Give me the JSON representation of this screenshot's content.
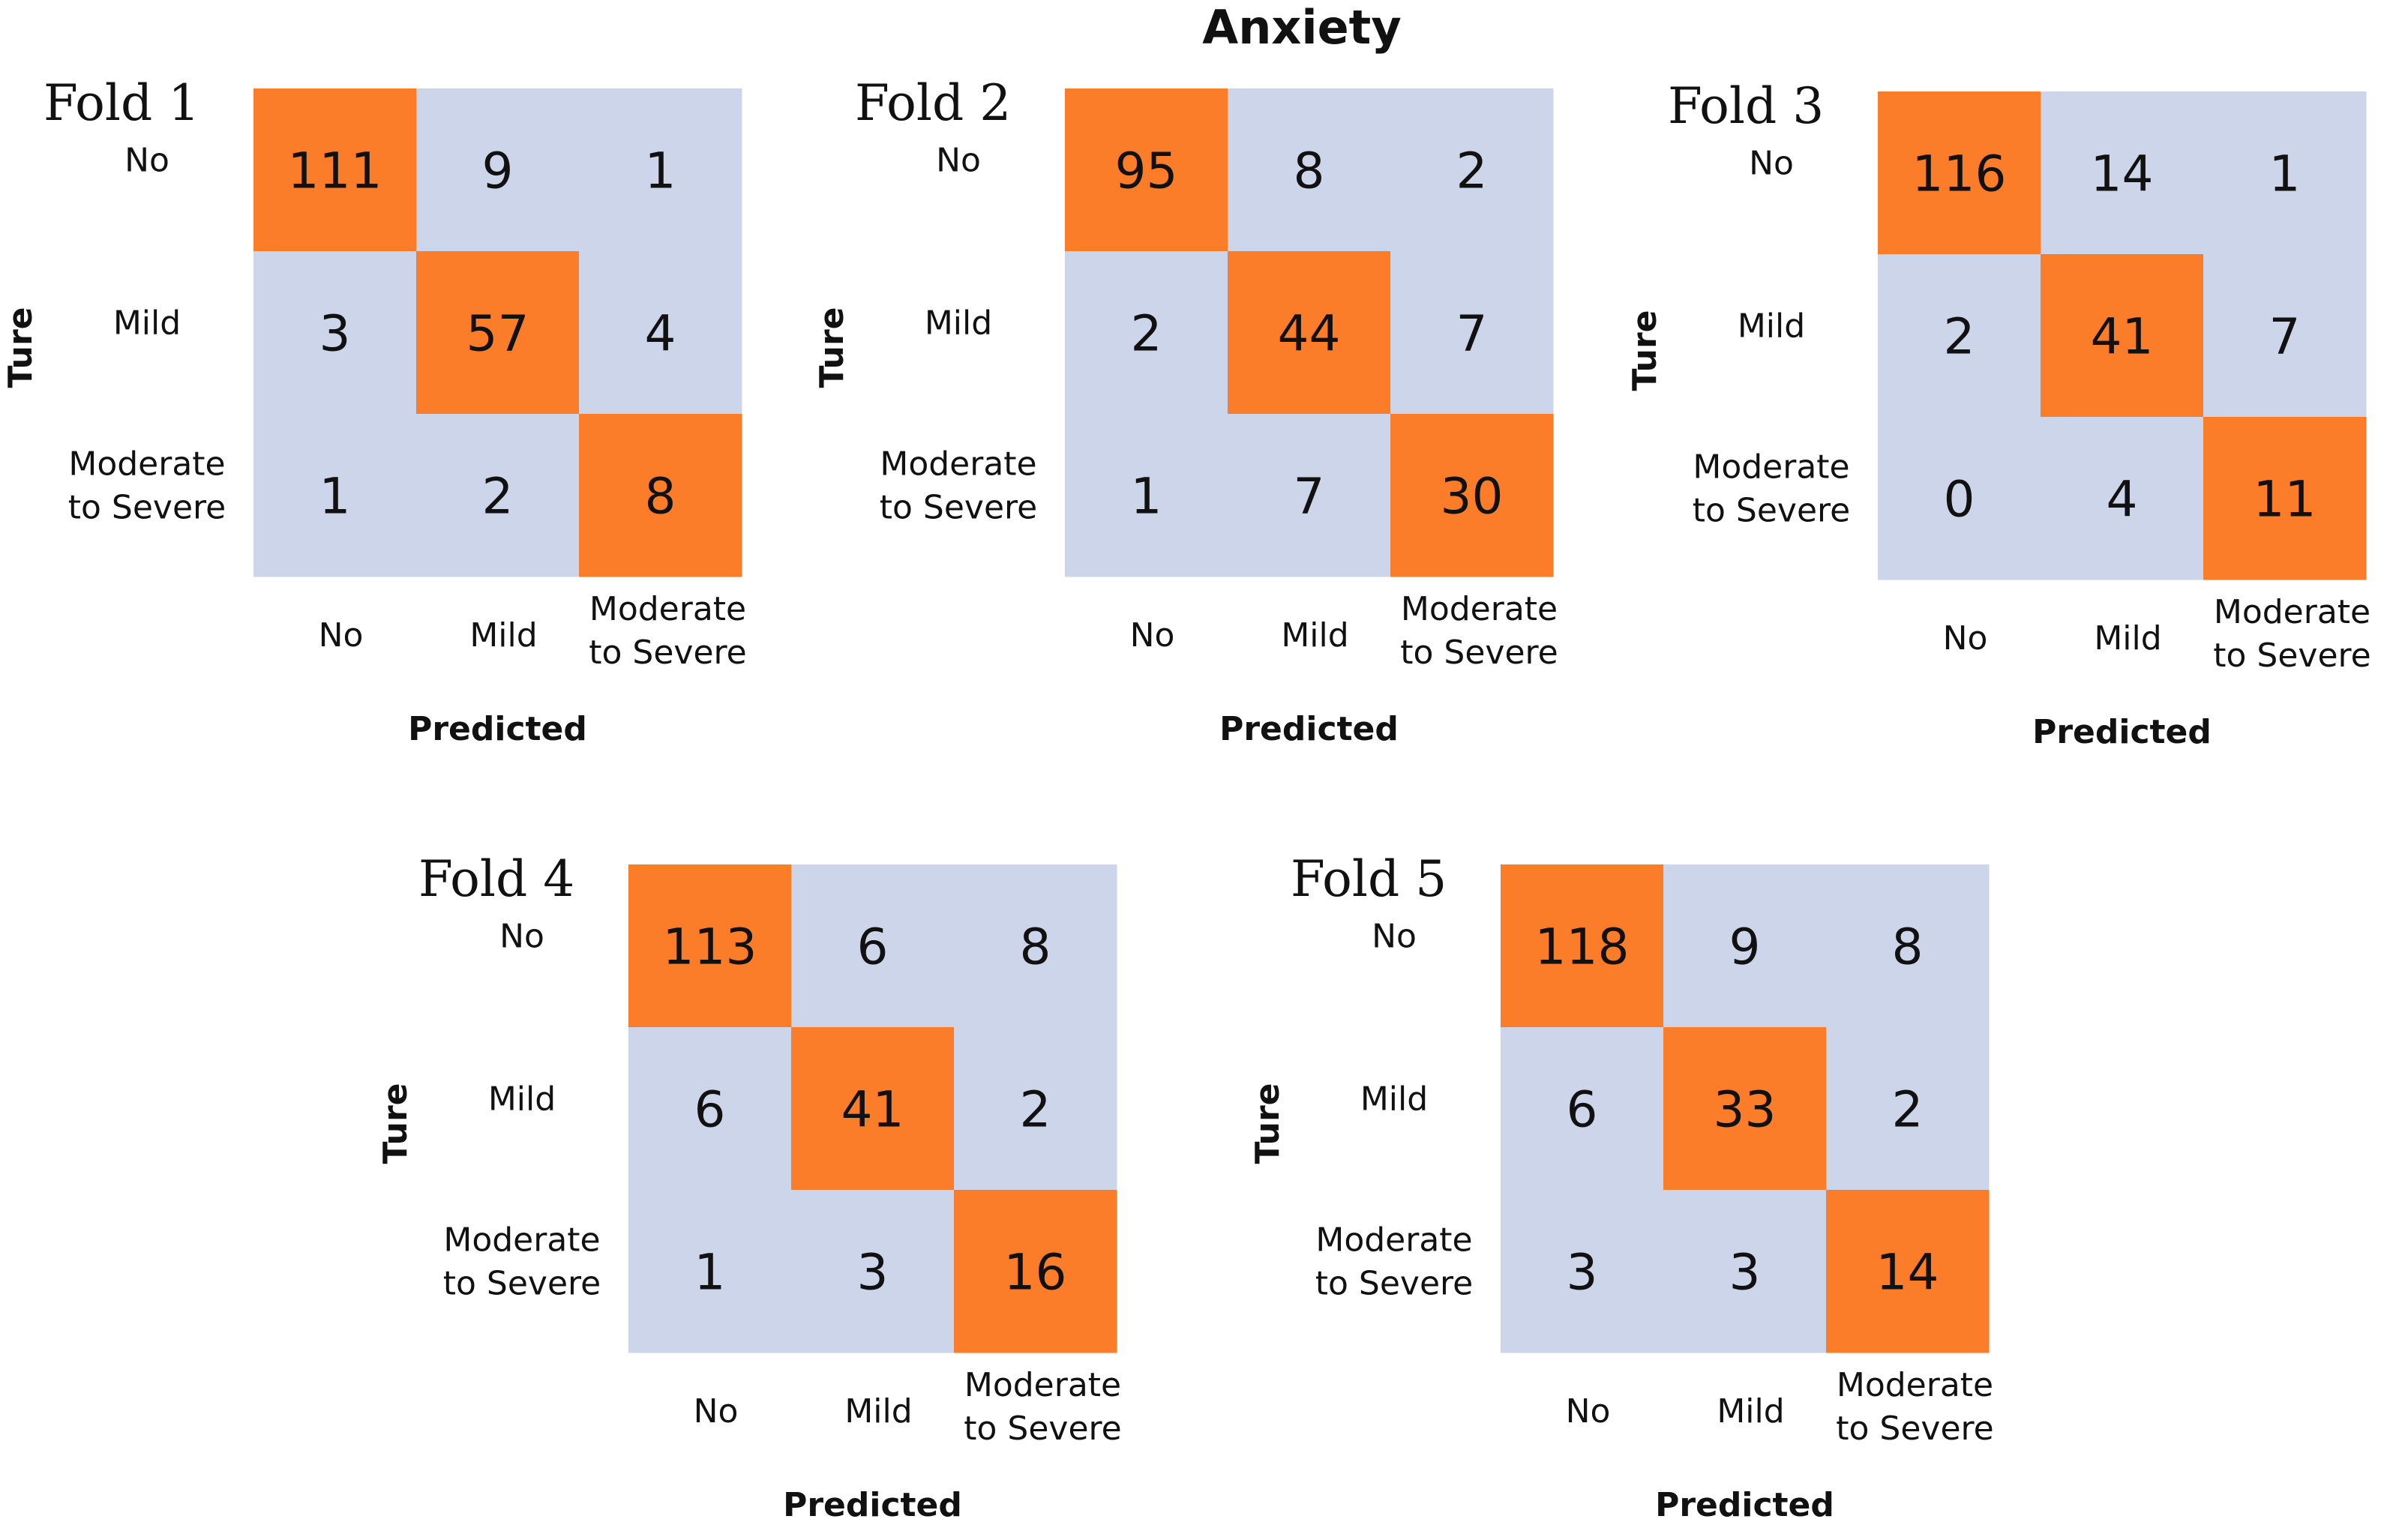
{
  "figure_title": "Anxiety",
  "colors": {
    "diagonal": "#FB7D2A",
    "off_diagonal": "#CDD5EA",
    "text": "#111111"
  },
  "chart_data": [
    {
      "type": "heatmap",
      "title": "Fold 1",
      "xlabel": "Predicted",
      "ylabel": "Ture",
      "categories_x": [
        "No",
        "Mild",
        "Moderate\nto Severe"
      ],
      "categories_y": [
        "No",
        "Mild",
        "Moderate\nto Severe"
      ],
      "values": [
        [
          111,
          9,
          1
        ],
        [
          3,
          57,
          4
        ],
        [
          1,
          2,
          8
        ]
      ]
    },
    {
      "type": "heatmap",
      "title": "Fold 2",
      "xlabel": "Predicted",
      "ylabel": "Ture",
      "categories_x": [
        "No",
        "Mild",
        "Moderate\nto Severe"
      ],
      "categories_y": [
        "No",
        "Mild",
        "Moderate\nto Severe"
      ],
      "values": [
        [
          95,
          8,
          2
        ],
        [
          2,
          44,
          7
        ],
        [
          1,
          7,
          30
        ]
      ]
    },
    {
      "type": "heatmap",
      "title": "Fold 3",
      "xlabel": "Predicted",
      "ylabel": "Ture",
      "categories_x": [
        "No",
        "Mild",
        "Moderate\nto Severe"
      ],
      "categories_y": [
        "No",
        "Mild",
        "Moderate\nto Severe"
      ],
      "values": [
        [
          116,
          14,
          1
        ],
        [
          2,
          41,
          7
        ],
        [
          0,
          4,
          11
        ]
      ]
    },
    {
      "type": "heatmap",
      "title": "Fold 4",
      "xlabel": "Predicted",
      "ylabel": "Ture",
      "categories_x": [
        "No",
        "Mild",
        "Moderate\nto Severe"
      ],
      "categories_y": [
        "No",
        "Mild",
        "Moderate\nto Severe"
      ],
      "values": [
        [
          113,
          6,
          8
        ],
        [
          6,
          41,
          2
        ],
        [
          1,
          3,
          16
        ]
      ]
    },
    {
      "type": "heatmap",
      "title": "Fold 5",
      "xlabel": "Predicted",
      "ylabel": "Ture",
      "categories_x": [
        "No",
        "Mild",
        "Moderate\nto Severe"
      ],
      "categories_y": [
        "No",
        "Mild",
        "Moderate\nto Severe"
      ],
      "values": [
        [
          118,
          9,
          8
        ],
        [
          6,
          33,
          2
        ],
        [
          3,
          3,
          14
        ]
      ]
    }
  ]
}
